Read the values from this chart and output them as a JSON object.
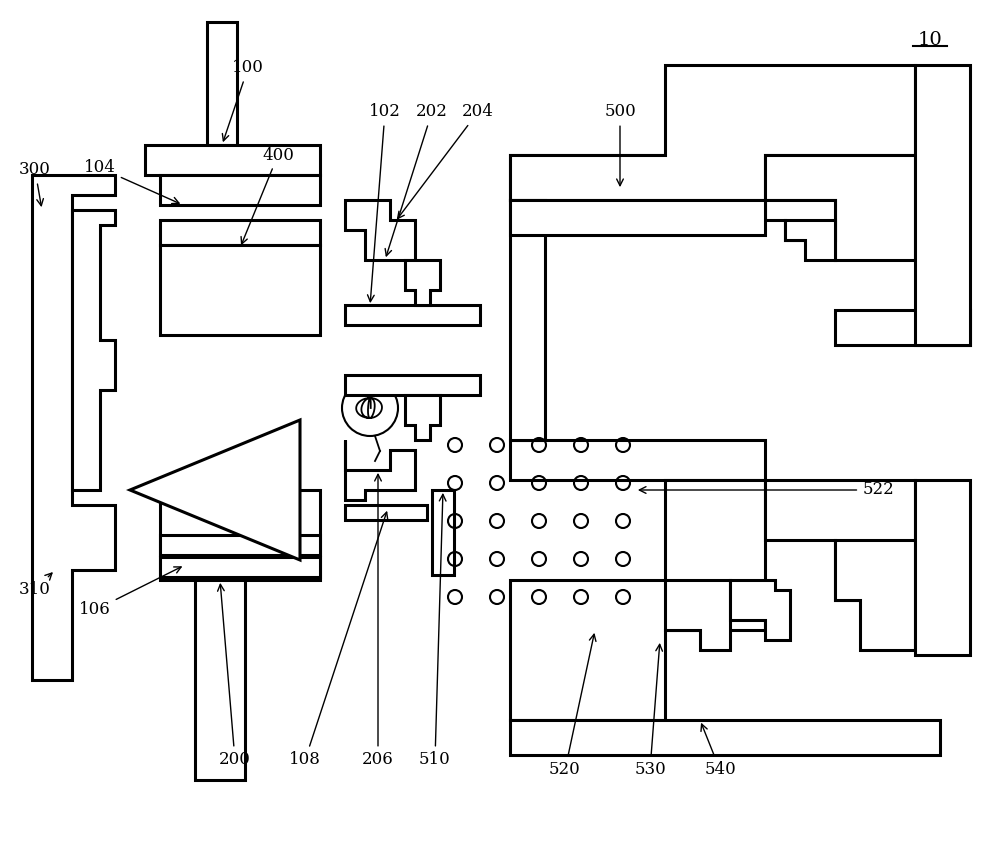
{
  "bg_color": "#ffffff",
  "line_color": "#000000",
  "lw": 2.2,
  "fig_label": "10",
  "font_size": 12
}
